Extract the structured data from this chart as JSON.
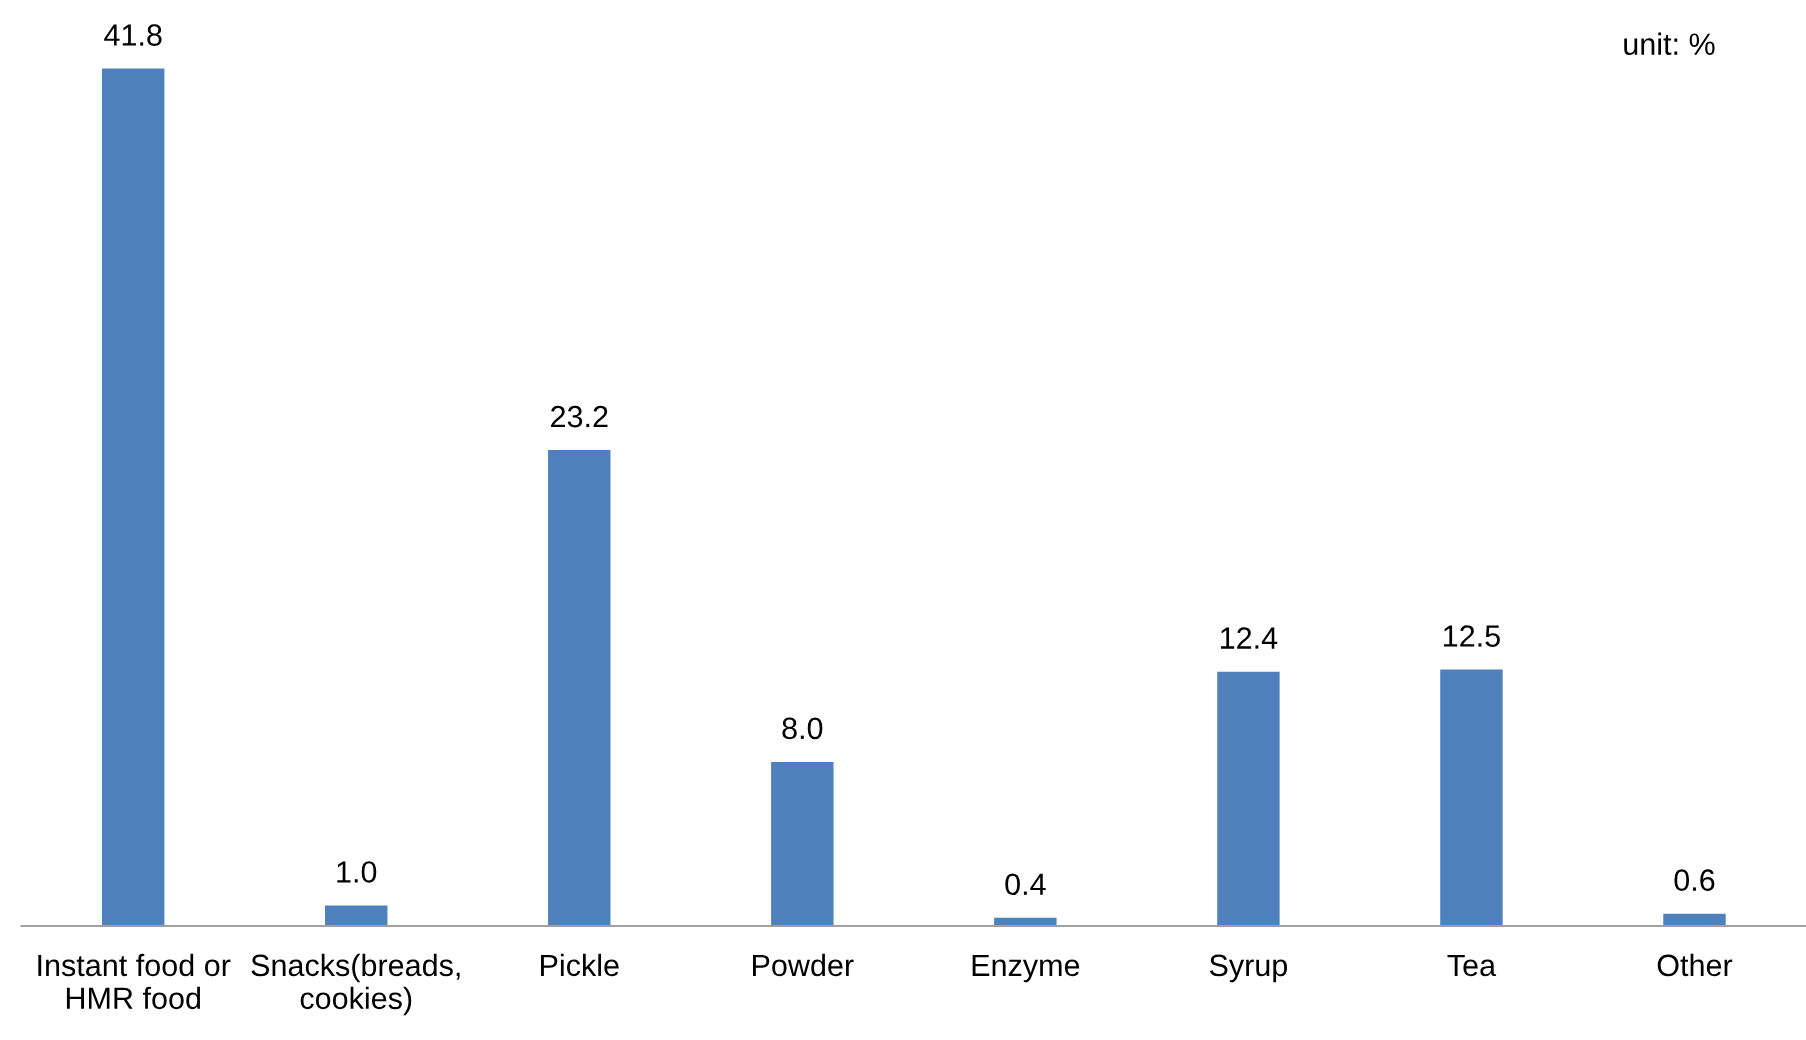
{
  "chart_data": {
    "type": "bar",
    "categories": [
      "Instant food or\nHMR food",
      "Snacks(breads,\ncookies)",
      "Pickle",
      "Powder",
      "Enzyme",
      "Syrup",
      "Tea",
      "Other"
    ],
    "values": [
      41.8,
      1.0,
      23.2,
      8.0,
      0.4,
      12.4,
      12.5,
      0.6
    ],
    "value_labels": [
      "41.8",
      "1.0",
      "23.2",
      "8.0",
      "0.4",
      "12.4",
      "12.5",
      "0.6"
    ],
    "color": "#4f81bd",
    "grid": false,
    "legend": false,
    "annotations": [
      "unit: %"
    ]
  }
}
